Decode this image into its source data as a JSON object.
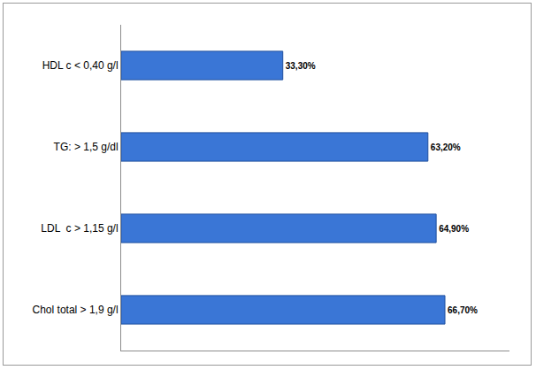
{
  "chart_data": {
    "type": "bar",
    "orientation": "horizontal",
    "categories": [
      "HDL c < 0,40 g/l",
      "TG: > 1,5 g/dl",
      "LDL  c > 1,15 g/l",
      "Chol total > 1,9 g/l"
    ],
    "values": [
      33.3,
      63.2,
      64.9,
      66.7
    ],
    "value_labels": [
      "33,30%",
      "63,20%",
      "64,90%",
      "66,70%"
    ],
    "color": "#3a76d6",
    "xlim": [
      0,
      80
    ],
    "grid": false,
    "data_labels": true,
    "tick_labels": "y"
  }
}
